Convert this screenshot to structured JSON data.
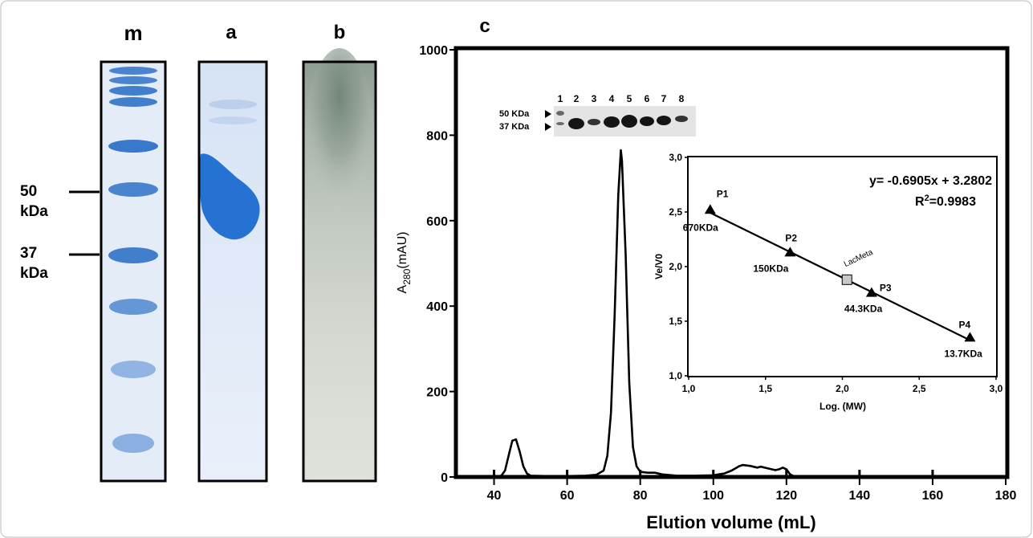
{
  "panels": {
    "m": "m",
    "a": "a",
    "b": "b",
    "c": "c"
  },
  "markers": [
    {
      "value": "50",
      "unit": "kDa"
    },
    {
      "value": "37",
      "unit": "kDa"
    }
  ],
  "colors": {
    "coomassie": "#2b6fc4",
    "gel_bg": "#e6eef9",
    "native_gel_bg": "#dfe3dc",
    "native_smear": "#6d7f74",
    "frame": "#000000"
  },
  "gel_inset": {
    "lanes": [
      "1",
      "2",
      "3",
      "4",
      "5",
      "6",
      "7",
      "8"
    ],
    "markers": [
      "50 KDa",
      "37 KDa"
    ]
  },
  "chart_data": [
    {
      "type": "line",
      "title": "",
      "xlabel": "Elution volume (mL)",
      "ylabel_main": "A",
      "ylabel_sub": "280",
      "ylabel_unit": "(mAU)",
      "xlim": [
        30,
        180
      ],
      "ylim": [
        0,
        1000
      ],
      "xticks": [
        40,
        60,
        80,
        100,
        120,
        140,
        160,
        180
      ],
      "yticks": [
        0,
        200,
        400,
        600,
        800,
        1000
      ],
      "x": [
        30,
        40,
        42,
        43,
        44,
        45,
        46,
        47,
        48,
        49,
        50,
        55,
        60,
        65,
        68,
        70,
        71,
        72,
        73,
        74,
        74.7,
        75,
        76,
        77,
        78,
        79,
        80,
        82,
        84,
        86,
        90,
        95,
        100,
        103,
        105,
        107,
        108,
        110,
        112,
        113,
        115,
        117,
        118,
        119,
        120,
        121,
        122,
        125,
        130,
        140,
        150,
        160,
        170,
        180
      ],
      "y": [
        0,
        0,
        3,
        15,
        50,
        85,
        88,
        60,
        25,
        8,
        3,
        2,
        2,
        3,
        5,
        15,
        50,
        150,
        380,
        660,
        765,
        740,
        520,
        220,
        70,
        25,
        12,
        10,
        10,
        6,
        3,
        3,
        4,
        8,
        15,
        25,
        28,
        26,
        22,
        24,
        20,
        16,
        18,
        22,
        18,
        6,
        2,
        0,
        0,
        0,
        0,
        0,
        0,
        0
      ],
      "tick_dots_x": [
        40,
        60,
        80,
        100,
        120,
        140,
        160
      ]
    },
    {
      "type": "scatter",
      "xlabel": "Log. (MW)",
      "ylabel": "Ve/V0",
      "xlim": [
        1.0,
        3.0
      ],
      "ylim": [
        1.0,
        3.0
      ],
      "xticks": [
        "1,0",
        "1,5",
        "2,0",
        "2,5",
        "3,0"
      ],
      "yticks": [
        "1,0",
        "1,5",
        "2,0",
        "2,5",
        "3,0"
      ],
      "points": [
        {
          "name": "P1",
          "label": "670KDa",
          "x": 1.14,
          "y": 2.52,
          "marker": "triangle"
        },
        {
          "name": "P2",
          "label": "150KDa",
          "x": 1.66,
          "y": 2.13,
          "marker": "triangle"
        },
        {
          "name": "P3",
          "label": "44.3KDa",
          "x": 2.19,
          "y": 1.76,
          "marker": "triangle"
        },
        {
          "name": "P4",
          "label": "13.7KDa",
          "x": 2.83,
          "y": 1.35,
          "marker": "triangle"
        }
      ],
      "sample": {
        "name": "LacMeta",
        "x": 2.03,
        "y": 1.88,
        "marker": "square",
        "color": "#c8c8c8"
      },
      "fit": {
        "slope": -0.6905,
        "intercept": 3.2802
      },
      "equation": "y= -0.6905x + 3.2802",
      "r2_label": "R",
      "r2_exp": "2",
      "r2_value": "=0.9983"
    }
  ]
}
